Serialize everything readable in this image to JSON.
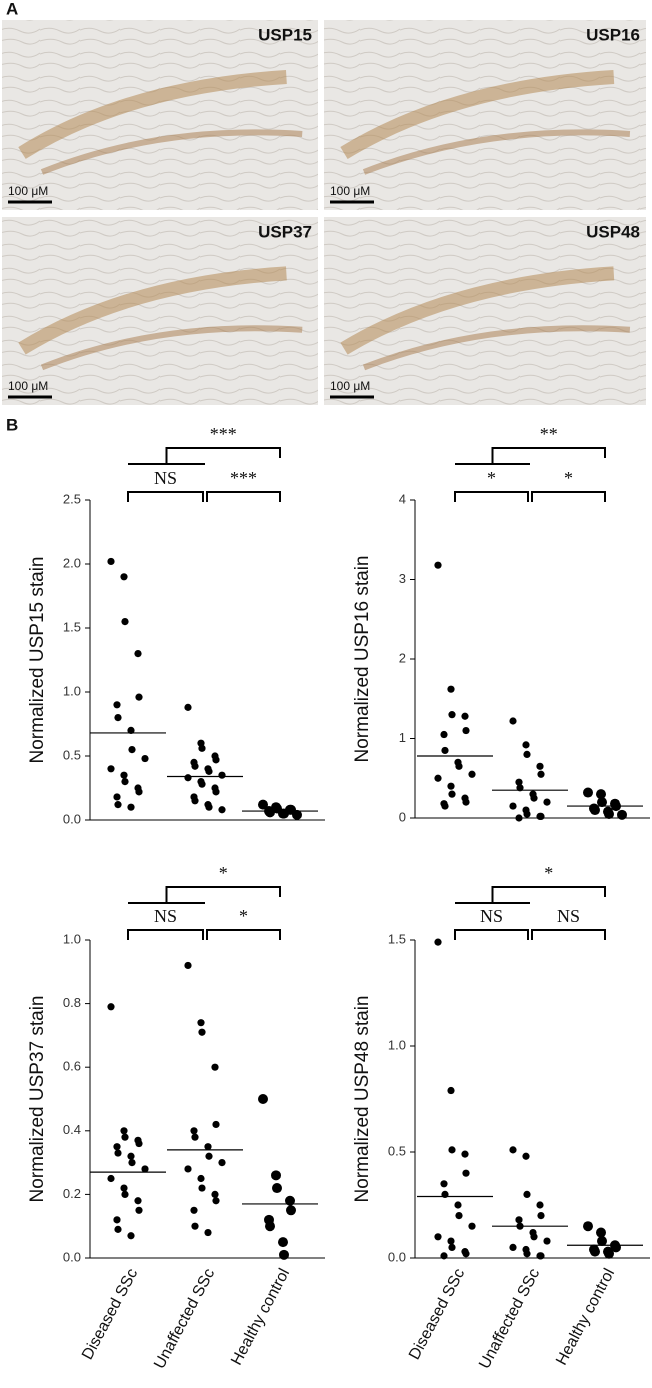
{
  "panel_a": {
    "label": "A",
    "images": [
      {
        "label": "USP15",
        "scale": "100 μM"
      },
      {
        "label": "USP16",
        "scale": "100 μM"
      },
      {
        "label": "USP37",
        "scale": "100 μM"
      },
      {
        "label": "USP48",
        "scale": "100 μM"
      }
    ]
  },
  "panel_b": {
    "label": "B"
  },
  "chart_data": [
    {
      "type": "dot",
      "ylabel": "Normalized  USP15 stain",
      "ylim": [
        0,
        2.5
      ],
      "yticks": [
        {
          "value": 0,
          "label": "0.0"
        },
        {
          "value": 0.5,
          "label": "0.5"
        },
        {
          "value": 1,
          "label": "1.0"
        },
        {
          "value": 1.5,
          "label": "1.5"
        },
        {
          "value": 2,
          "label": "2.0"
        },
        {
          "value": 2.5,
          "label": "2.5"
        }
      ],
      "groups": [
        [
          2.02,
          1.9,
          1.55,
          1.3,
          0.96,
          0.9,
          0.8,
          0.7,
          0.55,
          0.48,
          0.4,
          0.35,
          0.3,
          0.25,
          0.22,
          0.18,
          0.12,
          0.1
        ],
        [
          0.88,
          0.6,
          0.56,
          0.5,
          0.47,
          0.45,
          0.42,
          0.4,
          0.38,
          0.35,
          0.33,
          0.3,
          0.28,
          0.25,
          0.22,
          0.18,
          0.15,
          0.12,
          0.1,
          0.08
        ],
        [
          0.12,
          0.1,
          0.09,
          0.08,
          0.08,
          0.07,
          0.06,
          0.05,
          0.05,
          0.04
        ]
      ],
      "means": [
        0.68,
        0.34,
        0.07
      ],
      "significance": {
        "overall": "***",
        "diseased_vs_unaffected": "NS",
        "unaffected_vs_healthy": "***"
      }
    },
    {
      "type": "dot",
      "ylabel": "Normalized  USP16 stain",
      "ylim": [
        0,
        4
      ],
      "yticks": [
        0,
        1,
        2,
        3,
        4
      ],
      "groups": [
        [
          3.18,
          1.62,
          1.3,
          1.28,
          1.1,
          1.05,
          0.85,
          0.7,
          0.65,
          0.55,
          0.5,
          0.4,
          0.3,
          0.25,
          0.2,
          0.18,
          0.15
        ],
        [
          1.22,
          0.92,
          0.8,
          0.65,
          0.55,
          0.45,
          0.38,
          0.3,
          0.25,
          0.2,
          0.15,
          0.1,
          0.05,
          0.02,
          0.02,
          0
        ],
        [
          0.32,
          0.3,
          0.2,
          0.18,
          0.15,
          0.12,
          0.1,
          0.08,
          0.05,
          0.04
        ]
      ],
      "means": [
        0.78,
        0.35,
        0.15
      ],
      "significance": {
        "overall": "**",
        "diseased_vs_unaffected": "*",
        "unaffected_vs_healthy": "*"
      }
    },
    {
      "type": "dot",
      "ylabel": "Normalized  USP37 stain",
      "ylim": [
        0,
        1
      ],
      "yticks": [
        {
          "value": 0,
          "label": "0.0"
        },
        {
          "value": 0.2,
          "label": "0.2"
        },
        {
          "value": 0.4,
          "label": "0.4"
        },
        {
          "value": 0.6,
          "label": "0.6"
        },
        {
          "value": 0.8,
          "label": "0.8"
        },
        {
          "value": 1,
          "label": "1.0"
        }
      ],
      "categories": [
        "Diseased SSc",
        "Unaffected SSc",
        "Healthy control"
      ],
      "groups": [
        [
          0.79,
          0.4,
          0.38,
          0.37,
          0.36,
          0.35,
          0.33,
          0.32,
          0.3,
          0.28,
          0.25,
          0.22,
          0.2,
          0.18,
          0.15,
          0.12,
          0.09,
          0.07
        ],
        [
          0.92,
          0.74,
          0.71,
          0.6,
          0.42,
          0.4,
          0.38,
          0.35,
          0.32,
          0.3,
          0.28,
          0.25,
          0.22,
          0.2,
          0.18,
          0.15,
          0.1,
          0.08
        ],
        [
          0.5,
          0.26,
          0.22,
          0.18,
          0.15,
          0.12,
          0.1,
          0.05,
          0.01
        ]
      ],
      "means": [
        0.27,
        0.34,
        0.17
      ],
      "significance": {
        "overall": "*",
        "diseased_vs_unaffected": "NS",
        "unaffected_vs_healthy": "*"
      }
    },
    {
      "type": "dot",
      "ylabel": "Normalized  USP48 stain",
      "ylim": [
        0,
        1.5
      ],
      "yticks": [
        {
          "value": 0,
          "label": "0.0"
        },
        {
          "value": 0.5,
          "label": "0.5"
        },
        {
          "value": 1,
          "label": "1.0"
        },
        {
          "value": 1.5,
          "label": "1.5"
        }
      ],
      "categories": [
        "Diseased SSc",
        "Unaffected SSc",
        "Healthy control"
      ],
      "groups": [
        [
          1.49,
          0.79,
          0.51,
          0.49,
          0.4,
          0.35,
          0.3,
          0.25,
          0.2,
          0.15,
          0.1,
          0.08,
          0.05,
          0.03,
          0.02,
          0.01
        ],
        [
          0.51,
          0.48,
          0.3,
          0.25,
          0.2,
          0.18,
          0.15,
          0.12,
          0.1,
          0.08,
          0.05,
          0.04,
          0.02,
          0.01,
          0.01
        ],
        [
          0.15,
          0.12,
          0.08,
          0.06,
          0.05,
          0.04,
          0.03,
          0.03,
          0.02
        ]
      ],
      "means": [
        0.29,
        0.15,
        0.06
      ],
      "significance": {
        "overall": "*",
        "diseased_vs_unaffected": "NS",
        "unaffected_vs_healthy": "NS"
      }
    }
  ]
}
